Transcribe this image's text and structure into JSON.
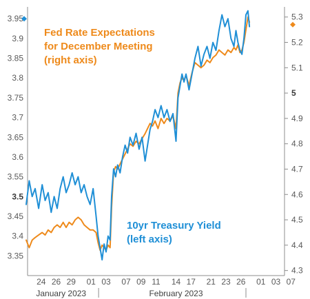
{
  "chart_data": {
    "type": "line",
    "colors": {
      "left_series": "#1f8fd6",
      "right_series": "#ee8a1b",
      "axis": "#8c8c8c",
      "tick_text": "#595959"
    },
    "annotations": {
      "right_series": [
        "Fed Rate Expectations",
        "for December Meeting",
        "(right axis)"
      ],
      "left_series": [
        "10yr Treasury Yield",
        "(left axis)"
      ]
    },
    "y_left": {
      "range": [
        3.3,
        3.98
      ],
      "ticks": [
        {
          "v": 3.35,
          "label": "3.35"
        },
        {
          "v": 3.4,
          "label": "3.4"
        },
        {
          "v": 3.45,
          "label": "3.45"
        },
        {
          "v": 3.5,
          "label": "3.5",
          "bold": true
        },
        {
          "v": 3.55,
          "label": "3.55"
        },
        {
          "v": 3.6,
          "label": "3.6"
        },
        {
          "v": 3.65,
          "label": "3.65"
        },
        {
          "v": 3.7,
          "label": "3.7"
        },
        {
          "v": 3.75,
          "label": "3.75"
        },
        {
          "v": 3.8,
          "label": "3.8"
        },
        {
          "v": 3.85,
          "label": "3.85"
        },
        {
          "v": 3.9,
          "label": "3.9"
        },
        {
          "v": 3.95,
          "label": "3.95"
        }
      ]
    },
    "y_right": {
      "range": [
        4.28,
        5.34
      ],
      "ticks": [
        {
          "v": 4.3,
          "label": "4.3"
        },
        {
          "v": 4.4,
          "label": "4.4"
        },
        {
          "v": 4.5,
          "label": "4.5"
        },
        {
          "v": 4.6,
          "label": "4.6"
        },
        {
          "v": 4.7,
          "label": "4.7"
        },
        {
          "v": 4.8,
          "label": "4.8"
        },
        {
          "v": 4.9,
          "label": "4.9"
        },
        {
          "v": 5.0,
          "label": "5",
          "bold": true
        },
        {
          "v": 5.1,
          "label": "5.1"
        },
        {
          "v": 5.2,
          "label": "5.2"
        },
        {
          "v": 5.3,
          "label": "5.3"
        }
      ]
    },
    "x": {
      "range": [
        0,
        49
      ],
      "ticks": [
        {
          "d": 3,
          "label": "24"
        },
        {
          "d": 6,
          "label": "26"
        },
        {
          "d": 9,
          "label": "29"
        },
        {
          "d": 13,
          "label": "01"
        },
        {
          "d": 16,
          "label": "03"
        },
        {
          "d": 20,
          "label": "07"
        },
        {
          "d": 23,
          "label": "09"
        },
        {
          "d": 26,
          "label": "11"
        },
        {
          "d": 30,
          "label": "14"
        },
        {
          "d": 33,
          "label": "17"
        },
        {
          "d": 37,
          "label": "21"
        },
        {
          "d": 40,
          "label": "23"
        },
        {
          "d": 43,
          "label": "26"
        },
        {
          "d": 47,
          "label": "01"
        },
        {
          "d": 50,
          "label": "03"
        },
        {
          "d": 53,
          "label": "07"
        }
      ],
      "months": [
        {
          "d": 7,
          "label": "January 2023"
        },
        {
          "d": 30,
          "label": "February 2023"
        }
      ],
      "month_dividers": [
        14.5,
        44
      ]
    },
    "markers": [
      {
        "axis": "left",
        "y": 3.95,
        "side": "left"
      },
      {
        "axis": "right",
        "y": 5.27,
        "side": "right"
      }
    ],
    "series": [
      {
        "axis": "left",
        "points": [
          [
            0.0,
            3.48
          ],
          [
            0.6,
            3.54
          ],
          [
            1.2,
            3.5
          ],
          [
            1.8,
            3.52
          ],
          [
            2.5,
            3.47
          ],
          [
            3.2,
            3.53
          ],
          [
            3.8,
            3.49
          ],
          [
            4.4,
            3.51
          ],
          [
            5.0,
            3.46
          ],
          [
            5.6,
            3.5
          ],
          [
            6.2,
            3.47
          ],
          [
            6.8,
            3.52
          ],
          [
            7.4,
            3.55
          ],
          [
            8.0,
            3.51
          ],
          [
            8.6,
            3.53
          ],
          [
            9.2,
            3.56
          ],
          [
            9.8,
            3.53
          ],
          [
            10.4,
            3.55
          ],
          [
            11.0,
            3.51
          ],
          [
            11.6,
            3.53
          ],
          [
            12.2,
            3.5
          ],
          [
            12.8,
            3.48
          ],
          [
            13.4,
            3.52
          ],
          [
            14.0,
            3.45
          ],
          [
            14.4,
            3.4
          ],
          [
            14.8,
            3.37
          ],
          [
            15.2,
            3.34
          ],
          [
            15.6,
            3.38
          ],
          [
            16.0,
            3.36
          ],
          [
            16.4,
            3.4
          ],
          [
            16.8,
            3.39
          ],
          [
            17.1,
            3.5
          ],
          [
            17.5,
            3.57
          ],
          [
            17.9,
            3.55
          ],
          [
            18.3,
            3.58
          ],
          [
            18.8,
            3.56
          ],
          [
            19.3,
            3.6
          ],
          [
            19.8,
            3.63
          ],
          [
            20.3,
            3.61
          ],
          [
            20.8,
            3.65
          ],
          [
            21.4,
            3.63
          ],
          [
            22.0,
            3.66
          ],
          [
            22.6,
            3.62
          ],
          [
            23.2,
            3.65
          ],
          [
            23.8,
            3.59
          ],
          [
            24.3,
            3.63
          ],
          [
            24.8,
            3.67
          ],
          [
            25.3,
            3.69
          ],
          [
            25.8,
            3.72
          ],
          [
            26.4,
            3.7
          ],
          [
            27.0,
            3.73
          ],
          [
            27.6,
            3.7
          ],
          [
            28.2,
            3.72
          ],
          [
            28.8,
            3.69
          ],
          [
            29.4,
            3.71
          ],
          [
            30.0,
            3.64
          ],
          [
            30.4,
            3.75
          ],
          [
            30.8,
            3.78
          ],
          [
            31.2,
            3.81
          ],
          [
            31.6,
            3.79
          ],
          [
            32.0,
            3.81
          ],
          [
            32.6,
            3.77
          ],
          [
            33.2,
            3.81
          ],
          [
            33.8,
            3.85
          ],
          [
            34.4,
            3.88
          ],
          [
            35.0,
            3.83
          ],
          [
            35.6,
            3.86
          ],
          [
            36.2,
            3.88
          ],
          [
            36.8,
            3.85
          ],
          [
            37.4,
            3.89
          ],
          [
            38.0,
            3.87
          ],
          [
            38.6,
            3.92
          ],
          [
            39.2,
            3.96
          ],
          [
            39.8,
            3.93
          ],
          [
            40.4,
            3.95
          ],
          [
            41.0,
            3.9
          ],
          [
            41.6,
            3.88
          ],
          [
            42.0,
            3.92
          ],
          [
            42.4,
            3.89
          ],
          [
            42.8,
            3.87
          ],
          [
            43.2,
            3.86
          ],
          [
            43.6,
            3.9
          ],
          [
            44.0,
            3.96
          ],
          [
            44.4,
            3.97
          ],
          [
            44.7,
            3.93
          ]
        ]
      },
      {
        "axis": "right",
        "points": [
          [
            0.0,
            4.42
          ],
          [
            0.6,
            4.39
          ],
          [
            1.2,
            4.42
          ],
          [
            1.8,
            4.43
          ],
          [
            2.5,
            4.44
          ],
          [
            3.2,
            4.45
          ],
          [
            3.8,
            4.44
          ],
          [
            4.4,
            4.46
          ],
          [
            5.0,
            4.45
          ],
          [
            5.6,
            4.47
          ],
          [
            6.2,
            4.48
          ],
          [
            6.8,
            4.47
          ],
          [
            7.4,
            4.49
          ],
          [
            8.0,
            4.47
          ],
          [
            8.6,
            4.49
          ],
          [
            9.2,
            4.48
          ],
          [
            9.8,
            4.5
          ],
          [
            10.4,
            4.51
          ],
          [
            11.0,
            4.5
          ],
          [
            11.6,
            4.48
          ],
          [
            12.2,
            4.47
          ],
          [
            12.8,
            4.46
          ],
          [
            13.4,
            4.46
          ],
          [
            14.0,
            4.45
          ],
          [
            14.4,
            4.41
          ],
          [
            14.8,
            4.38
          ],
          [
            15.2,
            4.4
          ],
          [
            15.6,
            4.39
          ],
          [
            16.0,
            4.38
          ],
          [
            16.4,
            4.4
          ],
          [
            16.8,
            4.39
          ],
          [
            17.1,
            4.55
          ],
          [
            17.5,
            4.69
          ],
          [
            17.9,
            4.71
          ],
          [
            18.3,
            4.7
          ],
          [
            18.8,
            4.72
          ],
          [
            19.3,
            4.74
          ],
          [
            19.8,
            4.76
          ],
          [
            20.3,
            4.78
          ],
          [
            20.8,
            4.8
          ],
          [
            21.4,
            4.79
          ],
          [
            22.0,
            4.81
          ],
          [
            22.6,
            4.8
          ],
          [
            23.2,
            4.82
          ],
          [
            23.8,
            4.84
          ],
          [
            24.3,
            4.86
          ],
          [
            24.8,
            4.88
          ],
          [
            25.3,
            4.87
          ],
          [
            25.8,
            4.89
          ],
          [
            26.4,
            4.86
          ],
          [
            27.0,
            4.9
          ],
          [
            27.6,
            4.88
          ],
          [
            28.2,
            4.9
          ],
          [
            28.8,
            4.89
          ],
          [
            29.4,
            4.91
          ],
          [
            30.0,
            4.86
          ],
          [
            30.4,
            5.0
          ],
          [
            30.8,
            5.04
          ],
          [
            31.2,
            5.06
          ],
          [
            31.6,
            5.05
          ],
          [
            32.0,
            5.07
          ],
          [
            32.6,
            5.03
          ],
          [
            33.2,
            5.08
          ],
          [
            33.8,
            5.12
          ],
          [
            34.4,
            5.11
          ],
          [
            35.0,
            5.1
          ],
          [
            35.6,
            5.11
          ],
          [
            36.2,
            5.13
          ],
          [
            36.8,
            5.12
          ],
          [
            37.4,
            5.14
          ],
          [
            38.0,
            5.15
          ],
          [
            38.6,
            5.17
          ],
          [
            39.2,
            5.16
          ],
          [
            39.8,
            5.15
          ],
          [
            40.4,
            5.17
          ],
          [
            41.0,
            5.16
          ],
          [
            41.6,
            5.18
          ],
          [
            42.0,
            5.17
          ],
          [
            42.4,
            5.19
          ],
          [
            42.8,
            5.16
          ],
          [
            43.2,
            5.17
          ],
          [
            43.6,
            5.2
          ],
          [
            44.0,
            5.25
          ],
          [
            44.4,
            5.3
          ],
          [
            44.7,
            5.28
          ]
        ]
      }
    ]
  }
}
